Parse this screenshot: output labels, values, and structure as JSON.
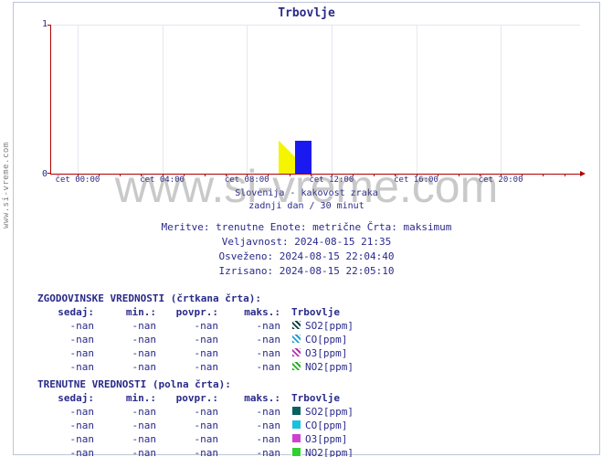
{
  "site_label": "www.si-vreme.com",
  "watermark": "www.si-vreme.com",
  "title": "Trbovlje",
  "chart": {
    "type": "line",
    "ylim": [
      0,
      1
    ],
    "yticks": [
      0,
      1
    ],
    "xticks_major": [
      "čet 00:00",
      "čet 04:00",
      "čet 08:00",
      "čet 12:00",
      "čet 16:00",
      "čet 20:00"
    ],
    "xtick_positions_pct": [
      5,
      21,
      37,
      53,
      69,
      85
    ],
    "minor_tick_positions_pct": [
      5,
      9,
      13,
      17,
      21,
      25,
      29,
      33,
      37,
      41,
      45,
      49,
      53,
      57,
      61,
      65,
      69,
      73,
      77,
      81,
      85,
      89,
      93,
      97
    ],
    "marker_left_pct": 43,
    "axis_color": "#b00000",
    "grid_color": "#e6e6f0",
    "tick_label_color": "#2a2a8a",
    "caption1": "Slovenija - kakovost zraka",
    "caption2": "zadnji dan / 30 minut"
  },
  "meta": {
    "line1": "Meritve: trenutne  Enote: metrične  Črta: maksimum",
    "line2": "Veljavnost: 2024-08-15 21:35",
    "line3": "Osveženo: 2024-08-15 22:04:40",
    "line4": "Izrisano: 2024-08-15 22:05:10"
  },
  "series": [
    {
      "name": "SO2[ppm]",
      "dashed_color": "#0a4040",
      "solid_color": "#0a6060"
    },
    {
      "name": "CO[ppm]",
      "dashed_color": "#1aa0d0",
      "solid_color": "#1ac0e0"
    },
    {
      "name": "O3[ppm]",
      "dashed_color": "#b030b0",
      "solid_color": "#d040d0"
    },
    {
      "name": "NO2[ppm]",
      "dashed_color": "#20b020",
      "solid_color": "#30d030"
    }
  ],
  "tables": {
    "hist_heading": "ZGODOVINSKE VREDNOSTI (črtkana črta):",
    "cur_heading": "TRENUTNE VREDNOSTI (polna črta):",
    "columns": [
      "sedaj:",
      "min.:",
      "povpr.:",
      "maks.:"
    ],
    "station": "Trbovlje",
    "rows": [
      {
        "sedaj": "-nan",
        "min": "-nan",
        "povpr": "-nan",
        "maks": "-nan"
      },
      {
        "sedaj": "-nan",
        "min": "-nan",
        "povpr": "-nan",
        "maks": "-nan"
      },
      {
        "sedaj": "-nan",
        "min": "-nan",
        "povpr": "-nan",
        "maks": "-nan"
      },
      {
        "sedaj": "-nan",
        "min": "-nan",
        "povpr": "-nan",
        "maks": "-nan"
      }
    ]
  }
}
